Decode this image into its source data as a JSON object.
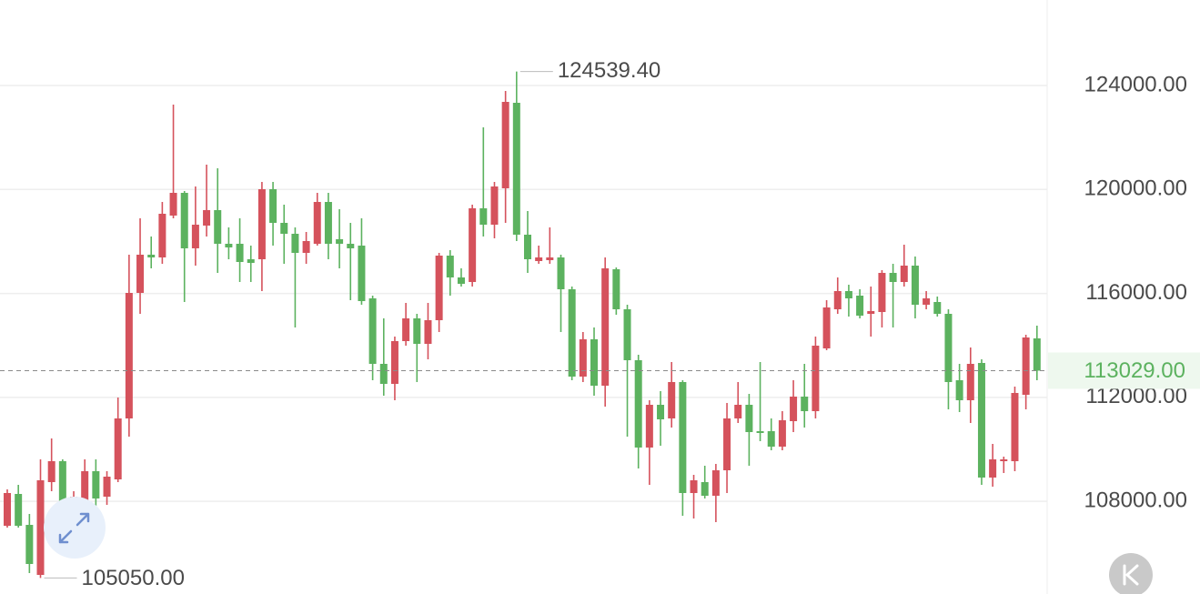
{
  "chart_data": {
    "type": "candlestick",
    "up_color": "#d5525c",
    "down_color": "#5cb25f",
    "ylim": [
      104435,
      127290
    ],
    "yticks": [
      {
        "value": 108000,
        "label": "108000.00"
      },
      {
        "value": 112000,
        "label": "112000.00"
      },
      {
        "value": 116000,
        "label": "116000.00"
      },
      {
        "value": 120000,
        "label": "120000.00"
      },
      {
        "value": 124000,
        "label": "124000.00"
      }
    ],
    "grid": true,
    "last_price": {
      "value": 113029,
      "label": "113029.00"
    },
    "high_label": {
      "value": 124539.4,
      "label": "124539.40"
    },
    "low_label": {
      "value": 105050,
      "label": "105050.00"
    },
    "open": [
      107060,
      108285,
      107095,
      105170,
      108740,
      109545,
      107935,
      108040,
      109160,
      108180,
      108845,
      111190,
      116020,
      117490,
      117385,
      118995,
      119870,
      117735,
      118610,
      119205,
      117910,
      117910,
      117315,
      117315,
      120010,
      118715,
      118295,
      117560,
      117910,
      119520,
      118085,
      117910,
      117840,
      115810,
      113290,
      112520,
      114165,
      115040,
      114060,
      114970,
      117455,
      116615,
      116440,
      119275,
      118645,
      120045,
      123335,
      118260,
      117245,
      117280,
      117385,
      116160,
      112800,
      114235,
      112450,
      116930,
      115390,
      113430,
      110070,
      111715,
      111190,
      112590,
      108320,
      108740,
      108215,
      109195,
      111190,
      111715,
      110700,
      110700,
      110105,
      111085,
      112030,
      111470,
      113885,
      115390,
      116090,
      115915,
      115215,
      115285,
      116790,
      116440,
      117070,
      115565,
      115670,
      115215,
      112660,
      111890,
      113325,
      108915,
      109545,
      109545,
      112100,
      114270
    ],
    "high": [
      108460,
      108635,
      107515,
      109615,
      110420,
      109615,
      108390,
      109615,
      109615,
      109160,
      111995,
      117490,
      118890,
      118190,
      119520,
      123265,
      119940,
      120115,
      120955,
      120815,
      118540,
      118890,
      117840,
      120290,
      120290,
      119415,
      118540,
      118365,
      119870,
      119870,
      119240,
      118715,
      118890,
      115915,
      115040,
      114340,
      115635,
      115215,
      115635,
      117560,
      117665,
      116965,
      119415,
      122390,
      120290,
      123790,
      124539.4,
      119170,
      117840,
      118540,
      117490,
      116265,
      114515,
      114690,
      117385,
      117000,
      115565,
      113640,
      111890,
      112240,
      113360,
      112660,
      109020,
      109370,
      109440,
      111785,
      112590,
      112135,
      113360,
      111190,
      111470,
      112660,
      113290,
      114340,
      115740,
      116615,
      116335,
      116160,
      116265,
      116895,
      117140,
      117875,
      117420,
      116090,
      115880,
      115390,
      113290,
      113920,
      113465,
      110210,
      109720,
      112415,
      114410,
      114760
    ],
    "low": [
      106990,
      106990,
      105240,
      105050,
      108390,
      107270,
      107690,
      107690,
      107515,
      107865,
      108740,
      110490,
      115215,
      116965,
      117140,
      118890,
      115670,
      117070,
      118190,
      116790,
      117315,
      116440,
      116440,
      116090,
      117840,
      117140,
      114690,
      117140,
      117840,
      117315,
      116965,
      115740,
      115565,
      112660,
      112065,
      111890,
      113990,
      112590,
      113465,
      114515,
      115915,
      116265,
      116265,
      118190,
      118120,
      118715,
      118015,
      116790,
      117140,
      117140,
      114515,
      112660,
      112590,
      112065,
      111645,
      115180,
      110490,
      109265,
      108635,
      110140,
      110840,
      107445,
      107340,
      108110,
      107200,
      108320,
      111015,
      109370,
      110315,
      109965,
      109965,
      110665,
      110840,
      111190,
      113815,
      115215,
      115110,
      115040,
      114340,
      114690,
      114690,
      116265,
      115040,
      115390,
      115110,
      111540,
      111435,
      111015,
      108635,
      108565,
      109090,
      109160,
      111540,
      112660
    ],
    "close": [
      108320,
      107060,
      105590,
      108810,
      109545,
      107970,
      108180,
      109160,
      108110,
      108950,
      111190,
      116020,
      117490,
      117385,
      119065,
      119870,
      117735,
      118645,
      119205,
      117910,
      117770,
      117210,
      117175,
      120010,
      118715,
      118295,
      117560,
      118015,
      119520,
      117910,
      117910,
      117735,
      115705,
      113290,
      112520,
      114165,
      115040,
      114060,
      114970,
      117455,
      116615,
      116370,
      119275,
      118645,
      120115,
      123370,
      118260,
      117315,
      117385,
      117385,
      116160,
      112800,
      114235,
      112450,
      116965,
      115390,
      113430,
      110070,
      111715,
      111155,
      112590,
      108320,
      108810,
      108215,
      109195,
      111190,
      111715,
      110665,
      110630,
      110105,
      111120,
      112030,
      111470,
      113990,
      115460,
      116090,
      115810,
      115145,
      115320,
      116790,
      116440,
      117070,
      115565,
      115810,
      115215,
      112590,
      111890,
      113290,
      108915,
      109615,
      109615,
      112170,
      114305,
      113029
    ]
  }
}
